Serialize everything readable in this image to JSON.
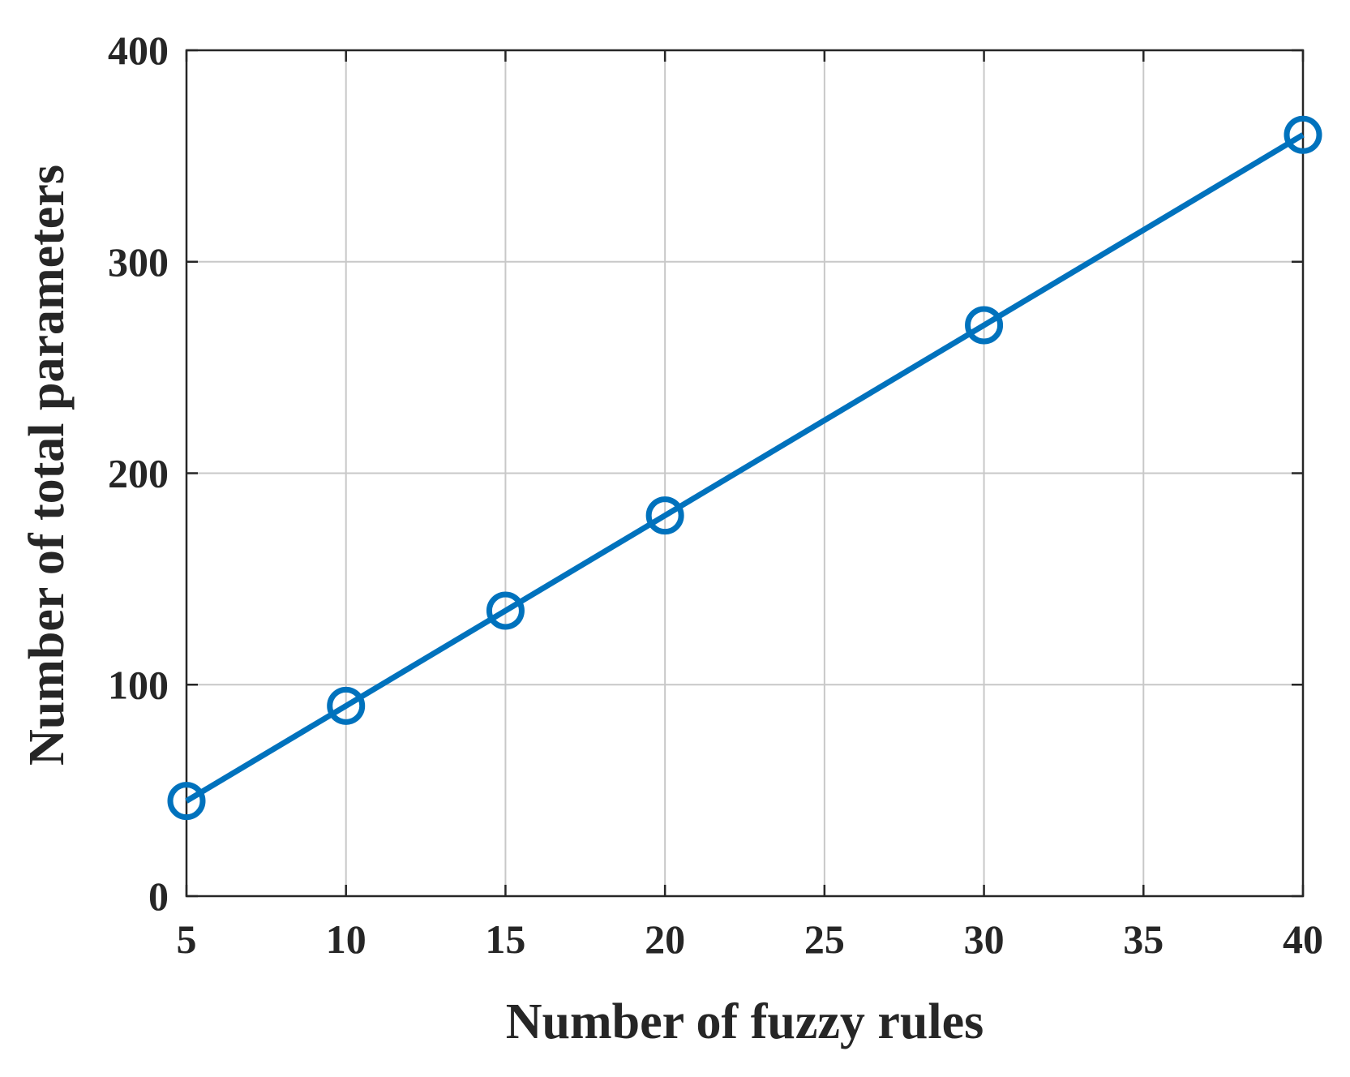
{
  "chart_data": {
    "type": "line",
    "title": "",
    "xlabel": "Number of fuzzy rules",
    "ylabel": "Number of total parameters",
    "xlim": [
      5,
      40
    ],
    "ylim": [
      0,
      400
    ],
    "xticks": [
      5,
      10,
      15,
      20,
      25,
      30,
      35,
      40
    ],
    "yticks": [
      0,
      100,
      200,
      300,
      400
    ],
    "xtick_labels": [
      "5",
      "10",
      "15",
      "20",
      "25",
      "30",
      "35",
      "40"
    ],
    "ytick_labels": [
      "0",
      "100",
      "200",
      "300",
      "400"
    ],
    "grid": true,
    "series": [
      {
        "x": [
          5,
          10,
          15,
          20,
          30,
          40
        ],
        "y": [
          45,
          90,
          135,
          180,
          270,
          360
        ],
        "color": "#0072BD",
        "marker": "circle-open"
      }
    ]
  }
}
